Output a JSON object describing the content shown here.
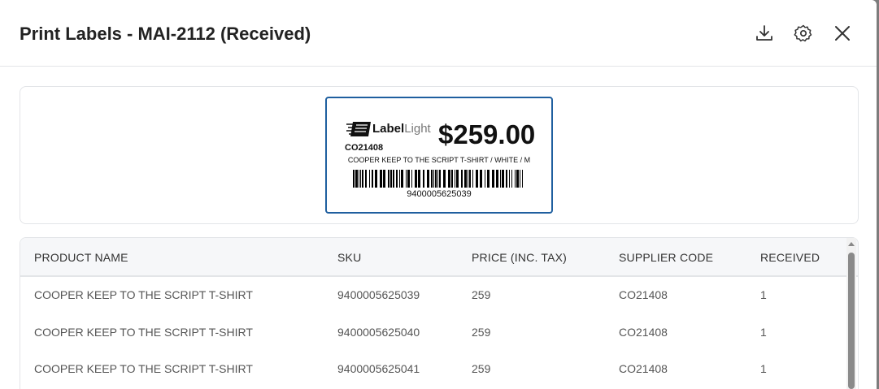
{
  "header": {
    "title": "Print Labels - MAI-2112 (Received)"
  },
  "label": {
    "logo_bold": "Label",
    "logo_light": "Light",
    "supplier_code": "CO21408",
    "price": "$259.00",
    "description": "COOPER KEEP TO THE SCRIPT T-SHIRT / WHITE / M",
    "barcode_number": "9400005625039"
  },
  "table": {
    "columns": [
      "PRODUCT NAME",
      "SKU",
      "PRICE (INC. TAX)",
      "SUPPLIER CODE",
      "RECEIVED"
    ],
    "rows": [
      [
        "COOPER KEEP TO THE SCRIPT T-SHIRT",
        "9400005625039",
        "259",
        "CO21408",
        "1"
      ],
      [
        "COOPER KEEP TO THE SCRIPT T-SHIRT",
        "9400005625040",
        "259",
        "CO21408",
        "1"
      ],
      [
        "COOPER KEEP TO THE SCRIPT T-SHIRT",
        "9400005625041",
        "259",
        "CO21408",
        "1"
      ]
    ]
  }
}
